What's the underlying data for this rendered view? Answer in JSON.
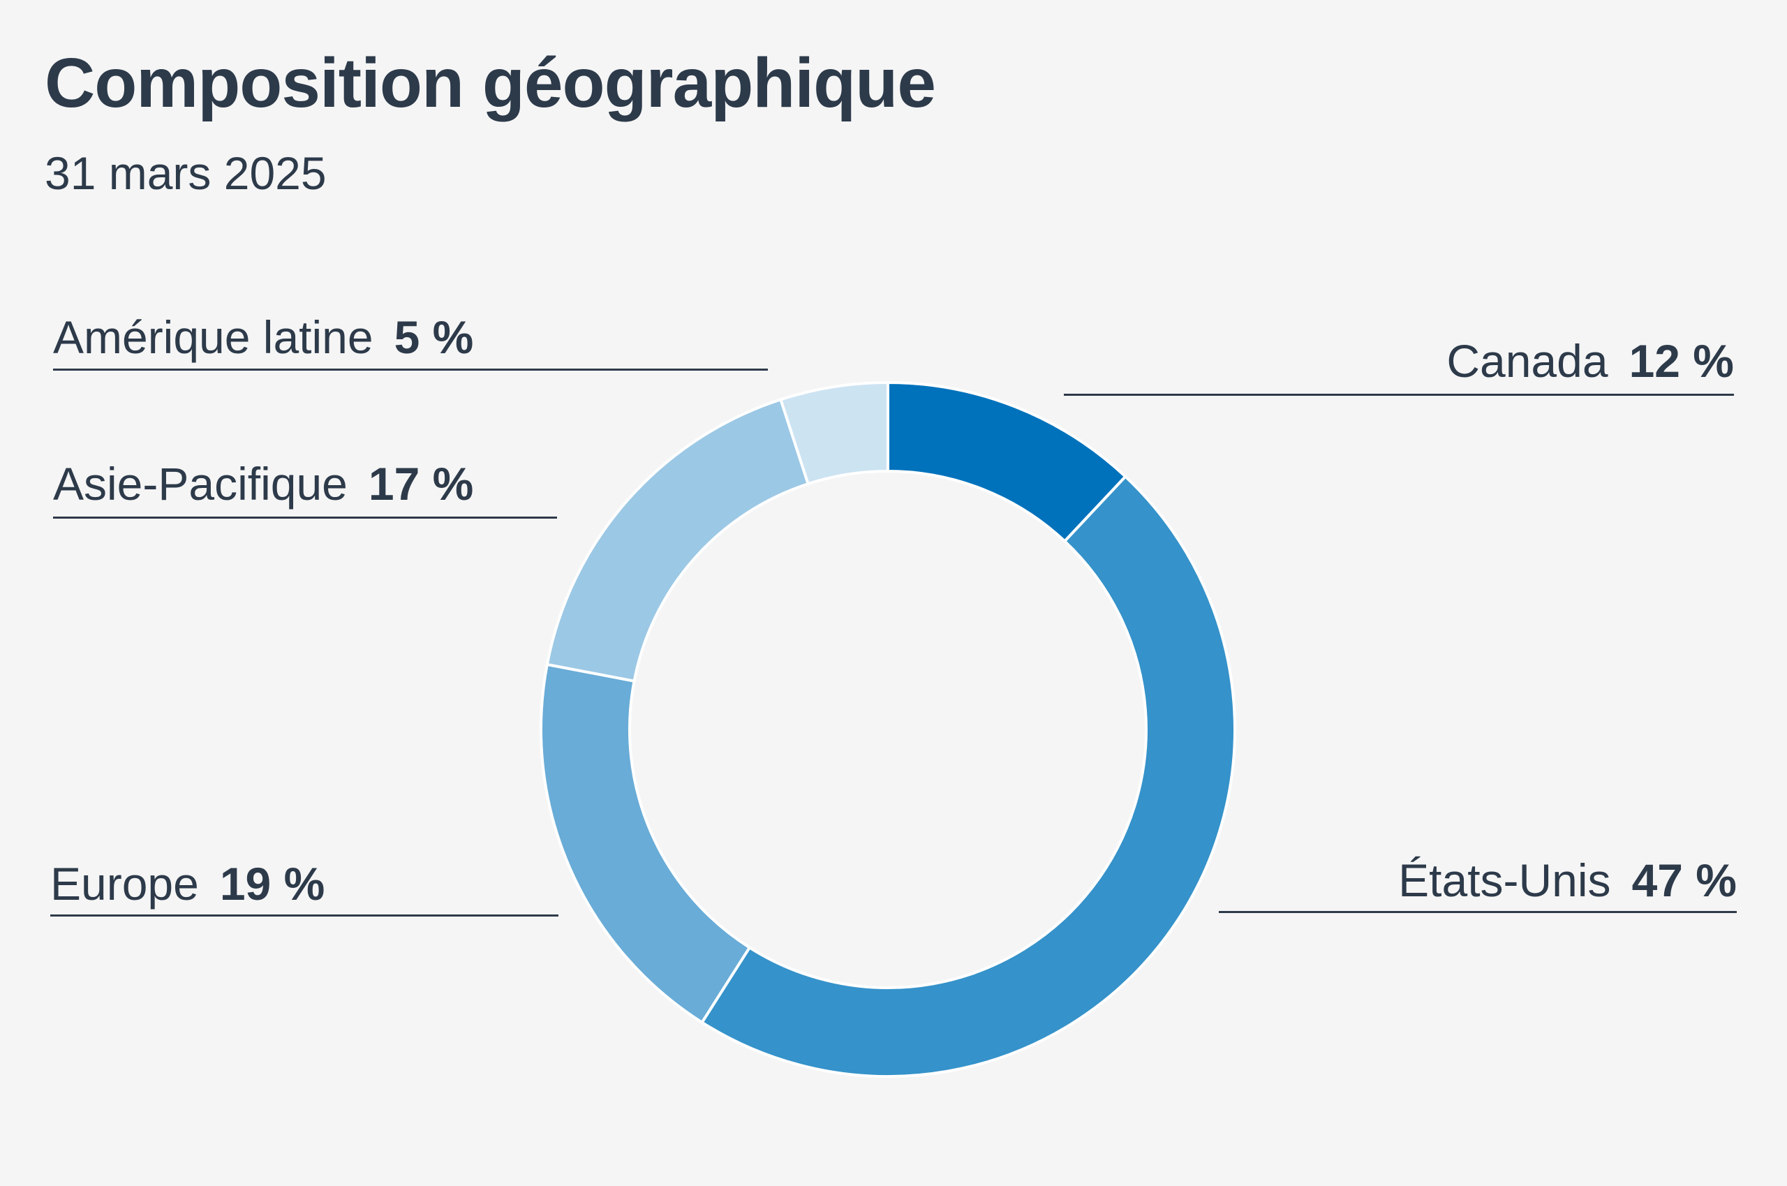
{
  "chart_data": {
    "type": "pie",
    "variant": "donut",
    "title": "Composition géographique",
    "subtitle": "31 mars 2025",
    "unit": "%",
    "slices": [
      {
        "name": "Canada",
        "value": 12,
        "label": "12 %",
        "color": "#0072bc"
      },
      {
        "name": "États-Unis",
        "value": 47,
        "label": "47 %",
        "color": "#3592ca"
      },
      {
        "name": "Europe",
        "value": 19,
        "label": "19 %",
        "color": "#69acd7"
      },
      {
        "name": "Asie-Pacifique",
        "value": 17,
        "label": "17 %",
        "color": "#9bc8e5"
      },
      {
        "name": "Amérique latine",
        "value": 5,
        "label": "5 %",
        "color": "#cce3f2"
      }
    ],
    "legend": "none",
    "start_angle_deg": 0,
    "direction": "clockwise"
  }
}
